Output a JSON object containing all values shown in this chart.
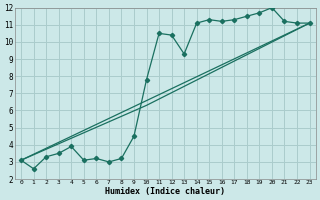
{
  "xlabel": "Humidex (Indice chaleur)",
  "bg_color": "#cce8e8",
  "grid_color": "#aacccc",
  "line_color": "#1a7060",
  "xlim": [
    -0.5,
    23.5
  ],
  "ylim": [
    2,
    12
  ],
  "xticks": [
    0,
    1,
    2,
    3,
    4,
    5,
    6,
    7,
    8,
    9,
    10,
    11,
    12,
    13,
    14,
    15,
    16,
    17,
    18,
    19,
    20,
    21,
    22,
    23
  ],
  "yticks": [
    2,
    3,
    4,
    5,
    6,
    7,
    8,
    9,
    10,
    11,
    12
  ],
  "series1_x": [
    0,
    1,
    2,
    3,
    4,
    5,
    6,
    7,
    8,
    9,
    10,
    11,
    12,
    13,
    14,
    15,
    16,
    17,
    18,
    19,
    20,
    21,
    22,
    23
  ],
  "series1_y": [
    3.1,
    2.6,
    3.3,
    3.5,
    3.9,
    3.1,
    3.2,
    3.0,
    3.2,
    4.5,
    7.8,
    10.5,
    10.4,
    9.3,
    11.1,
    11.3,
    11.2,
    11.3,
    11.5,
    11.7,
    12.0,
    11.2,
    11.1,
    11.1
  ],
  "series2_x": [
    0,
    23
  ],
  "series2_y": [
    3.1,
    11.1
  ],
  "series3_x": [
    0,
    10,
    23
  ],
  "series3_y": [
    3.1,
    6.3,
    11.1
  ]
}
